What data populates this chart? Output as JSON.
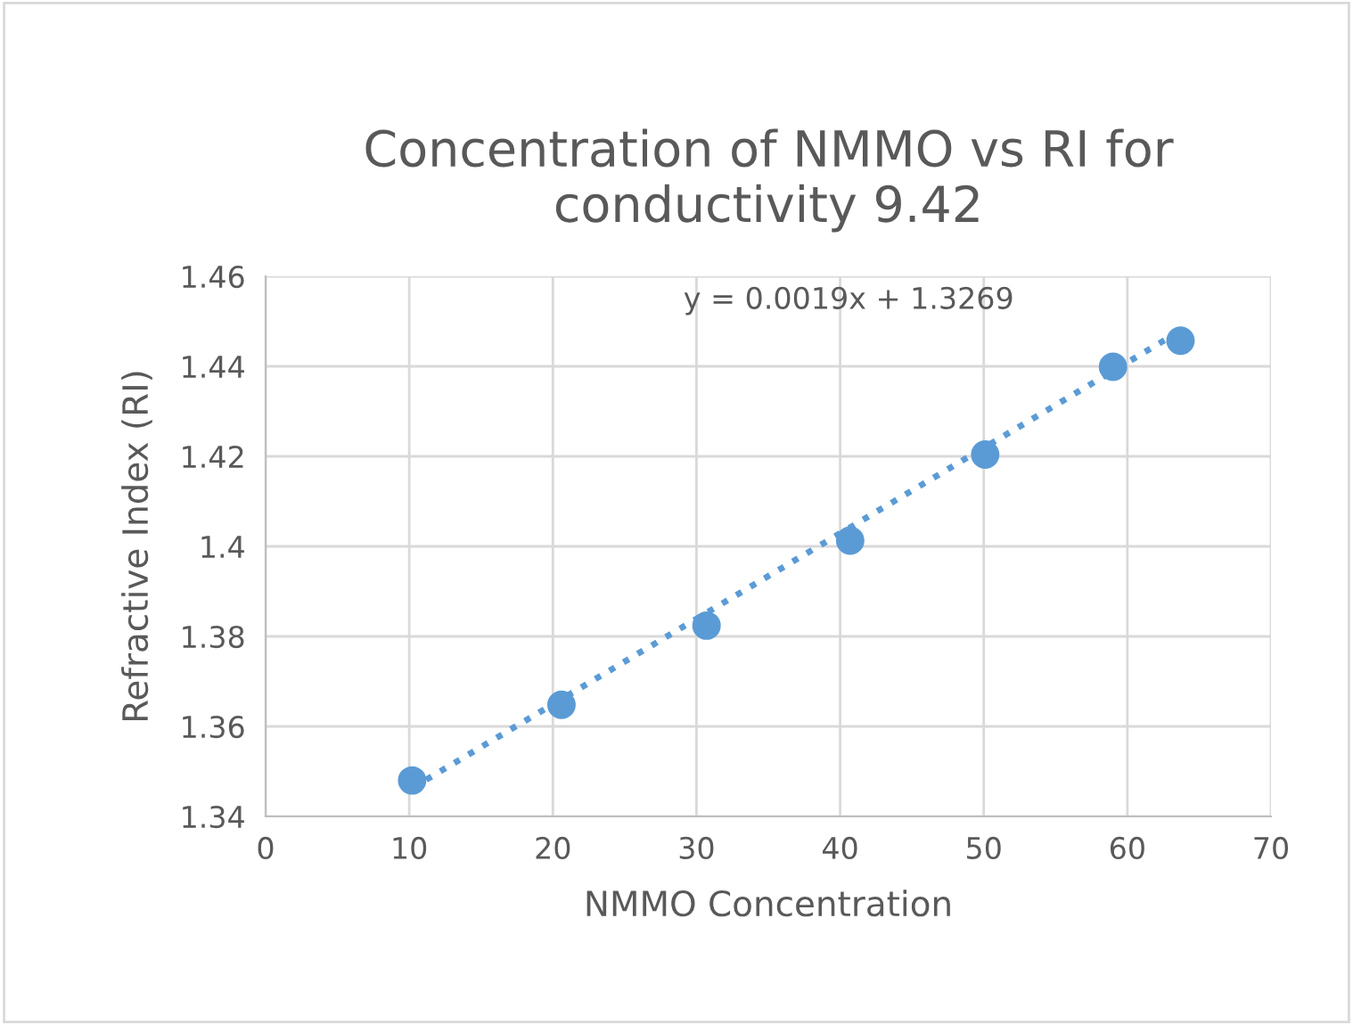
{
  "chart_data": {
    "type": "scatter",
    "title": "Concentration of NMMO vs RI for\nconductivity 9.42",
    "xlabel": "NMMO Concentration",
    "ylabel": "Refractive Index (RI)",
    "series": [
      {
        "color": "#5b9bd5",
        "marker": "circle",
        "x": [
          10.2,
          20.6,
          30.7,
          40.7,
          50.1,
          59.0,
          63.7
        ],
        "values": [
          1.348,
          1.3648,
          1.3824,
          1.4013,
          1.4204,
          1.4399,
          1.4457
        ]
      },
      {
        "type": "line",
        "color": "#5b9bd5",
        "line_style": "dotted",
        "marker": "none",
        "x": [
          10.2,
          63.7
        ],
        "values": [
          1.3463,
          1.4479
        ]
      }
    ],
    "annotations": [
      "y = 0.0019x + 1.3269"
    ],
    "xlim": [
      0,
      70
    ],
    "xticks": [
      0,
      10,
      20,
      30,
      40,
      50,
      60,
      70
    ],
    "ylim": [
      1.34,
      1.46
    ],
    "yticks": [
      1.34,
      1.36,
      1.38,
      {
        "value": 1.4,
        "label": "1.4"
      },
      1.42,
      1.44,
      1.46
    ],
    "grid": true
  }
}
